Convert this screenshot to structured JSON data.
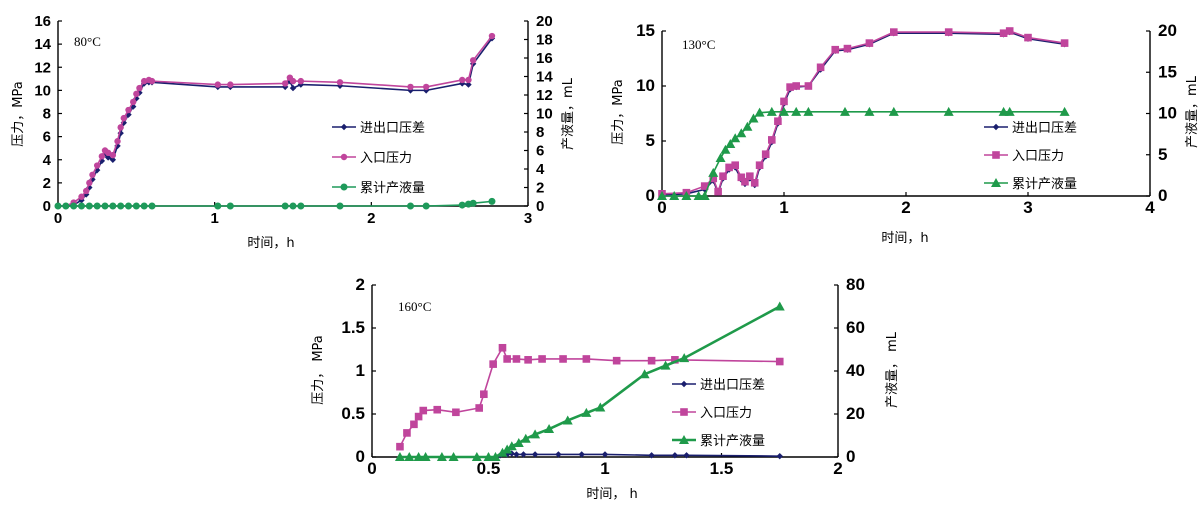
{
  "colors": {
    "diff": "#1a1f6e",
    "inlet": "#c0459c",
    "liquid80": "#1e9a5a",
    "liquid": "#1f9a4a",
    "axis": "#000000"
  },
  "chart_data": [
    {
      "id": "c1",
      "type": "line",
      "annotation": "80°C",
      "xlabel": "时间，h",
      "ylabel": "压力，MPa",
      "y2label": "产液量，mL",
      "xlim": [
        0,
        3
      ],
      "ylim": [
        0,
        16
      ],
      "y2lim": [
        0,
        20
      ],
      "xticks": [
        "0",
        "1",
        "2",
        "3"
      ],
      "yticks": [
        "0",
        "2",
        "4",
        "6",
        "8",
        "10",
        "12",
        "14",
        "16"
      ],
      "y2ticks": [
        "0",
        "2",
        "4",
        "6",
        "8",
        "10",
        "12",
        "14",
        "16",
        "18",
        "20"
      ],
      "legend_position": "right",
      "series": [
        {
          "name": "进出口压差",
          "axis": "left",
          "marker": "diamond",
          "x": [
            0.0,
            0.05,
            0.1,
            0.15,
            0.18,
            0.2,
            0.22,
            0.25,
            0.28,
            0.3,
            0.32,
            0.35,
            0.38,
            0.4,
            0.42,
            0.45,
            0.48,
            0.5,
            0.52,
            0.55,
            0.58,
            0.6,
            1.02,
            1.1,
            1.45,
            1.48,
            1.5,
            1.55,
            1.8,
            2.25,
            2.35,
            2.58,
            2.62,
            2.65,
            2.77
          ],
          "y": [
            0,
            0,
            0.1,
            0.5,
            1.0,
            1.6,
            2.3,
            3.1,
            3.9,
            4.5,
            4.2,
            4.0,
            5.2,
            6.3,
            7.2,
            7.9,
            8.6,
            9.3,
            9.8,
            10.6,
            10.7,
            10.7,
            10.3,
            10.3,
            10.3,
            10.8,
            10.2,
            10.5,
            10.4,
            10.0,
            10.0,
            10.6,
            10.5,
            12.3,
            14.5
          ]
        },
        {
          "name": "入口压力",
          "axis": "left",
          "marker": "circle",
          "x": [
            0.0,
            0.05,
            0.1,
            0.15,
            0.18,
            0.2,
            0.22,
            0.25,
            0.28,
            0.3,
            0.32,
            0.35,
            0.38,
            0.4,
            0.42,
            0.45,
            0.48,
            0.5,
            0.52,
            0.55,
            0.58,
            0.6,
            1.02,
            1.1,
            1.45,
            1.48,
            1.5,
            1.55,
            1.8,
            2.25,
            2.35,
            2.58,
            2.62,
            2.65,
            2.77
          ],
          "y": [
            0,
            0,
            0.3,
            0.8,
            1.3,
            2.0,
            2.7,
            3.5,
            4.3,
            4.8,
            4.6,
            4.4,
            5.6,
            6.8,
            7.6,
            8.3,
            9.0,
            9.7,
            10.2,
            10.8,
            10.9,
            10.8,
            10.5,
            10.5,
            10.6,
            11.1,
            10.8,
            10.8,
            10.7,
            10.3,
            10.3,
            10.9,
            10.9,
            12.6,
            14.7
          ]
        },
        {
          "name": "累计产液量",
          "axis": "right",
          "marker": "dot",
          "x": [
            0.0,
            0.05,
            0.1,
            0.15,
            0.2,
            0.25,
            0.3,
            0.35,
            0.4,
            0.45,
            0.5,
            0.55,
            0.6,
            1.02,
            1.1,
            1.45,
            1.5,
            1.55,
            1.8,
            2.25,
            2.35,
            2.58,
            2.62,
            2.65,
            2.77
          ],
          "y": [
            0,
            0,
            0,
            0,
            0,
            0,
            0,
            0,
            0,
            0,
            0,
            0,
            0,
            0,
            0,
            0,
            0,
            0,
            0,
            0,
            0,
            0.1,
            0.2,
            0.3,
            0.5
          ]
        }
      ]
    },
    {
      "id": "c2",
      "type": "line",
      "annotation": "130°C",
      "xlabel": "时间，h",
      "ylabel": "压力，MPa",
      "y2label": "产液量，mL",
      "xlim": [
        0,
        4
      ],
      "ylim": [
        0,
        15
      ],
      "y2lim": [
        0,
        20
      ],
      "xticks": [
        "0",
        "1",
        "2",
        "3",
        "4"
      ],
      "yticks": [
        "0",
        "5",
        "10",
        "15"
      ],
      "y2ticks": [
        "0",
        "5",
        "10",
        "15",
        "20"
      ],
      "legend_position": "right",
      "series": [
        {
          "name": "进出口压差",
          "axis": "left",
          "marker": "diamond",
          "x": [
            0,
            0.2,
            0.35,
            0.42,
            0.46,
            0.5,
            0.55,
            0.6,
            0.65,
            0.68,
            0.72,
            0.76,
            0.8,
            0.85,
            0.9,
            0.95,
            1.0,
            1.05,
            1.1,
            1.2,
            1.3,
            1.42,
            1.52,
            1.7,
            1.9,
            2.35,
            2.8,
            2.85,
            3.0,
            3.3
          ],
          "y": [
            0.1,
            0.2,
            0.6,
            1.4,
            0.3,
            1.6,
            2.4,
            2.6,
            1.5,
            1.1,
            1.6,
            1.0,
            2.6,
            3.6,
            4.9,
            6.6,
            8.4,
            9.7,
            9.9,
            10.0,
            11.5,
            13.2,
            13.3,
            13.8,
            14.8,
            14.8,
            14.7,
            14.9,
            14.3,
            13.8
          ]
        },
        {
          "name": "入口压力",
          "axis": "left",
          "marker": "square",
          "x": [
            0,
            0.2,
            0.35,
            0.42,
            0.46,
            0.5,
            0.55,
            0.6,
            0.65,
            0.68,
            0.72,
            0.76,
            0.8,
            0.85,
            0.9,
            0.95,
            1.0,
            1.05,
            1.1,
            1.2,
            1.3,
            1.42,
            1.52,
            1.7,
            1.9,
            2.35,
            2.8,
            2.85,
            3.0,
            3.3
          ],
          "y": [
            0.2,
            0.3,
            0.9,
            1.6,
            0.4,
            1.8,
            2.6,
            2.8,
            1.7,
            1.3,
            1.8,
            1.2,
            2.8,
            3.8,
            5.1,
            6.8,
            8.6,
            9.9,
            10.0,
            10.0,
            11.7,
            13.3,
            13.4,
            13.9,
            14.9,
            14.9,
            14.8,
            15.0,
            14.4,
            13.9
          ]
        },
        {
          "name": "累计产液量",
          "axis": "right",
          "marker": "triangle",
          "x": [
            0,
            0.1,
            0.2,
            0.3,
            0.35,
            0.42,
            0.48,
            0.52,
            0.56,
            0.6,
            0.65,
            0.7,
            0.75,
            0.8,
            0.9,
            1.0,
            1.1,
            1.2,
            1.5,
            1.7,
            1.9,
            2.35,
            2.8,
            2.85,
            3.3
          ],
          "y": [
            0,
            0,
            0,
            0,
            0,
            2.8,
            4.6,
            5.6,
            6.3,
            7.0,
            7.6,
            8.4,
            9.4,
            10.1,
            10.2,
            10.2,
            10.2,
            10.2,
            10.2,
            10.2,
            10.2,
            10.2,
            10.2,
            10.2,
            10.2
          ]
        }
      ]
    },
    {
      "id": "c3",
      "type": "line",
      "annotation": "160°C",
      "xlabel": "时间，  h",
      "ylabel": "压力，  MPa",
      "y2label": "产液量，    mL",
      "xlim": [
        0,
        2
      ],
      "ylim": [
        0,
        2
      ],
      "y2lim": [
        0,
        80
      ],
      "xticks": [
        "0",
        "0.5",
        "1",
        "1.5",
        "2"
      ],
      "yticks": [
        "0",
        "0.5",
        "1",
        "1.5",
        "2"
      ],
      "y2ticks": [
        "0",
        "20",
        "40",
        "60",
        "80"
      ],
      "legend_position": "right",
      "series": [
        {
          "name": "进出口压差",
          "axis": "left",
          "marker": "diamond",
          "x": [
            0.55,
            0.58,
            0.6,
            0.62,
            0.65,
            0.7,
            0.8,
            0.9,
            1.0,
            1.2,
            1.3,
            1.35,
            1.75
          ],
          "y": [
            0.02,
            0.03,
            0.04,
            0.03,
            0.03,
            0.03,
            0.03,
            0.03,
            0.03,
            0.02,
            0.02,
            0.02,
            0.01
          ]
        },
        {
          "name": "入口压力",
          "axis": "left",
          "marker": "square",
          "x": [
            0.12,
            0.15,
            0.18,
            0.2,
            0.22,
            0.28,
            0.36,
            0.46,
            0.48,
            0.52,
            0.56,
            0.58,
            0.62,
            0.67,
            0.73,
            0.82,
            0.92,
            1.05,
            1.2,
            1.3,
            1.75
          ],
          "y": [
            0.12,
            0.28,
            0.38,
            0.47,
            0.54,
            0.55,
            0.52,
            0.57,
            0.73,
            1.08,
            1.27,
            1.14,
            1.14,
            1.13,
            1.14,
            1.14,
            1.14,
            1.12,
            1.12,
            1.13,
            1.11
          ]
        },
        {
          "name": "累计产液量",
          "axis": "right",
          "marker": "triangle",
          "x": [
            0.12,
            0.16,
            0.2,
            0.23,
            0.3,
            0.35,
            0.45,
            0.5,
            0.53,
            0.56,
            0.58,
            0.6,
            0.63,
            0.66,
            0.7,
            0.76,
            0.84,
            0.92,
            0.98,
            1.17,
            1.26,
            1.34,
            1.75
          ],
          "y": [
            0,
            0,
            0,
            0,
            0,
            0,
            0,
            0,
            0,
            2,
            3.5,
            5,
            6.5,
            8.5,
            10.5,
            13,
            17,
            20.5,
            23,
            38.5,
            42.5,
            46,
            70
          ]
        }
      ]
    }
  ]
}
